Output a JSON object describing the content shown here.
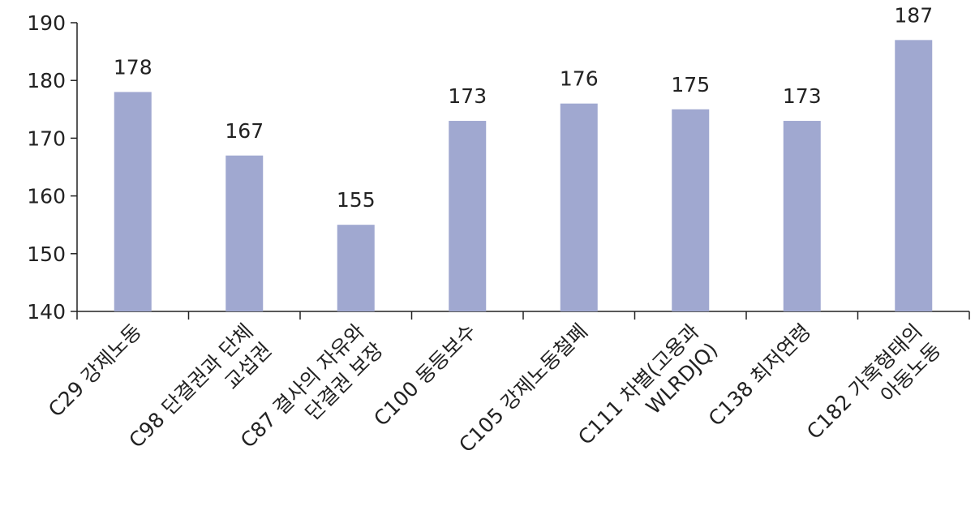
{
  "chart_data": {
    "type": "bar",
    "categories": [
      [
        "C29 강제노동"
      ],
      [
        "C98 단결권과 단체",
        "교섭권"
      ],
      [
        "C87 결사의 자유와",
        "단결권 보장"
      ],
      [
        "C100 동등보수"
      ],
      [
        "C105 강제노동철폐"
      ],
      [
        "C111 차별(고용과",
        "WLRDJQ)"
      ],
      [
        "C138 최저연령"
      ],
      [
        "C182 가혹형태의",
        "아동노동"
      ]
    ],
    "values": [
      178,
      167,
      155,
      173,
      176,
      175,
      173,
      187
    ],
    "color": "#a0a8d0",
    "ylim": [
      140,
      190
    ],
    "yticks": [
      140,
      150,
      160,
      170,
      180,
      190
    ]
  }
}
